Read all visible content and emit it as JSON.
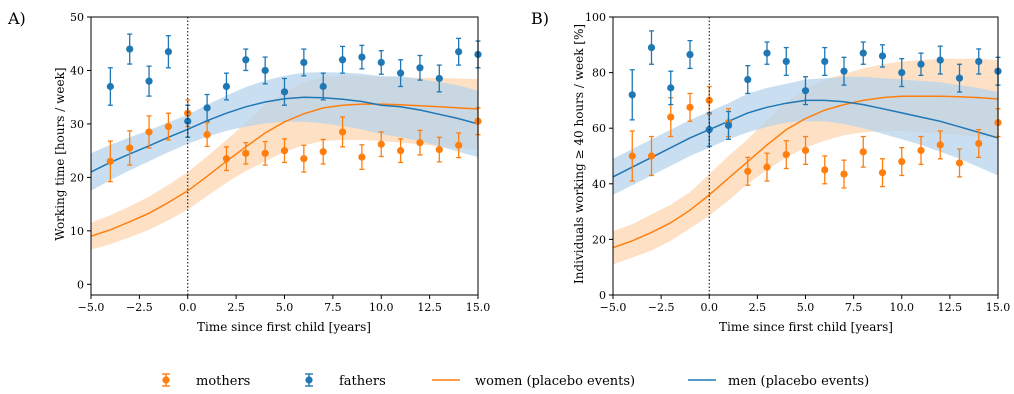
{
  "legend": {
    "mothers": "mothers",
    "fathers": "fathers",
    "women_placebo": "women (placebo events)",
    "men_placebo": "men (placebo events)"
  },
  "colors": {
    "mothers": "#ff7f0e",
    "fathers": "#1f77b4",
    "women_band": "#fdd5b1",
    "men_band": "#b7d4ec"
  },
  "chart_data": [
    {
      "panel_label": "A)",
      "type": "scatter",
      "xlabel": "Time since first child [years]",
      "ylabel": "Working time [hours / week]",
      "xlim": [
        -5,
        15
      ],
      "ylim": [
        -2,
        50
      ],
      "xticks": [
        "−5.0",
        "−2.5",
        "0.0",
        "2.5",
        "5.0",
        "7.5",
        "10.0",
        "12.5",
        "15.0"
      ],
      "xtick_values": [
        -5,
        -2.5,
        0,
        2.5,
        5,
        7.5,
        10,
        12.5,
        15
      ],
      "yticks": [
        "0",
        "10",
        "20",
        "30",
        "40",
        "50"
      ],
      "ytick_values": [
        0,
        10,
        20,
        30,
        40,
        50
      ],
      "event_line_x": 0,
      "series": [
        {
          "key": "mothers",
          "kind": "errorbar",
          "points": [
            [
              -4,
              23,
              3.8
            ],
            [
              -3,
              25.5,
              3.2
            ],
            [
              -2,
              28.5,
              3
            ],
            [
              -1,
              29.5,
              2.5
            ],
            [
              0,
              32,
              2.5
            ],
            [
              1,
              28,
              2.2
            ],
            [
              2,
              23.5,
              2.2
            ],
            [
              3,
              24.5,
              2
            ],
            [
              4,
              24.5,
              2.2
            ],
            [
              5,
              25,
              2.2
            ],
            [
              6,
              23.5,
              2.5
            ],
            [
              7,
              24.8,
              2.3
            ],
            [
              8,
              28.5,
              2.8
            ],
            [
              9,
              23.8,
              2.3
            ],
            [
              10,
              26.2,
              2.3
            ],
            [
              11,
              25,
              2.2
            ],
            [
              12,
              26.5,
              2.3
            ],
            [
              13,
              25.2,
              2.3
            ],
            [
              14,
              26,
              2.3
            ],
            [
              15,
              30.5,
              2.5
            ]
          ]
        },
        {
          "key": "fathers",
          "kind": "errorbar",
          "points": [
            [
              -4,
              37,
              3.5
            ],
            [
              -3,
              44,
              2.8
            ],
            [
              -2,
              38,
              2.8
            ],
            [
              -1,
              43.5,
              3
            ],
            [
              0,
              30.5,
              3
            ],
            [
              1,
              33,
              2.5
            ],
            [
              2,
              37,
              2.5
            ],
            [
              3,
              42,
              2
            ],
            [
              4,
              40,
              2.5
            ],
            [
              5,
              36,
              2.5
            ],
            [
              6,
              41.5,
              2.5
            ],
            [
              7,
              37,
              2.5
            ],
            [
              8,
              42,
              2.5
            ],
            [
              9,
              42.5,
              2.2
            ],
            [
              10,
              41.5,
              2.2
            ],
            [
              11,
              39.5,
              2.5
            ],
            [
              12,
              40.5,
              2.3
            ],
            [
              13,
              38.5,
              2.5
            ],
            [
              14,
              43.5,
              2.5
            ],
            [
              15,
              43,
              2.5
            ]
          ]
        },
        {
          "key": "women_placebo",
          "kind": "line",
          "x": [
            -5,
            -4,
            -3,
            -2,
            -1,
            0,
            1,
            2,
            3,
            4,
            5,
            6,
            7,
            8,
            9,
            10,
            11,
            12,
            13,
            14,
            15
          ],
          "y": [
            9,
            10.2,
            11.7,
            13.3,
            15.3,
            17.5,
            20.2,
            23,
            25.7,
            28.3,
            30.4,
            31.9,
            33,
            33.5,
            33.7,
            33.7,
            33.6,
            33.4,
            33.2,
            33,
            32.8
          ],
          "lower": [
            6.5,
            7.5,
            8.8,
            10.2,
            12,
            14,
            16.5,
            19,
            21.2,
            23,
            24.8,
            26,
            26.8,
            27,
            27,
            26.8,
            26.5,
            26.2,
            25.8,
            25.5,
            25.2
          ],
          "upper": [
            11.5,
            12.9,
            14.6,
            16.4,
            18.6,
            21,
            23.9,
            27,
            30.2,
            33.6,
            36,
            37.8,
            38.8,
            39,
            39,
            38.8,
            38.7,
            38.6,
            38.6,
            38.5,
            38.4
          ]
        },
        {
          "key": "men_placebo",
          "kind": "line",
          "x": [
            -5,
            -4,
            -3,
            -2,
            -1,
            0,
            1,
            2,
            3,
            4,
            5,
            6,
            7,
            8,
            9,
            10,
            11,
            12,
            13,
            14,
            15
          ],
          "y": [
            21,
            22.8,
            24.4,
            25.9,
            27.5,
            29,
            30.6,
            32,
            33.2,
            34.1,
            34.7,
            35,
            34.9,
            34.6,
            34.2,
            33.5,
            33.2,
            32.6,
            31.8,
            31,
            30
          ],
          "lower": [
            17.5,
            19.5,
            21.3,
            23,
            24.7,
            26.3,
            27.6,
            28.7,
            29.5,
            30.1,
            30.4,
            30.4,
            30.1,
            29.6,
            29,
            28.1,
            27.5,
            26.8,
            25.8,
            24.8,
            23.8
          ],
          "upper": [
            24.5,
            26.1,
            27.5,
            28.8,
            30.3,
            31.7,
            33.6,
            35.3,
            36.9,
            38.1,
            39,
            39.6,
            39.7,
            39.6,
            39.4,
            38.9,
            38.9,
            38.4,
            37.8,
            37.2,
            36.2
          ]
        }
      ]
    },
    {
      "panel_label": "B)",
      "type": "scatter",
      "xlabel": "Time since first child [years]",
      "ylabel": "Individuals working ≥ 40 hours  / week [%]",
      "xlim": [
        -5,
        15
      ],
      "ylim": [
        0,
        100
      ],
      "xticks": [
        "−5.0",
        "−2.5",
        "0.0",
        "2.5",
        "5.0",
        "7.5",
        "10.0",
        "12.5",
        "15.0"
      ],
      "xtick_values": [
        -5,
        -2.5,
        0,
        2.5,
        5,
        7.5,
        10,
        12.5,
        15
      ],
      "yticks": [
        "0",
        "20",
        "40",
        "60",
        "80",
        "100"
      ],
      "ytick_values": [
        0,
        20,
        40,
        60,
        80,
        100
      ],
      "event_line_x": 0,
      "series": [
        {
          "key": "mothers",
          "kind": "errorbar",
          "points": [
            [
              -4,
              50,
              9
            ],
            [
              -3,
              50,
              7
            ],
            [
              -2,
              64,
              7
            ],
            [
              -1,
              67.5,
              5
            ],
            [
              0,
              70,
              5
            ],
            [
              1,
              62,
              5
            ],
            [
              2,
              44.5,
              5
            ],
            [
              3,
              46,
              5
            ],
            [
              4,
              50.5,
              5
            ],
            [
              5,
              52,
              5
            ],
            [
              6,
              45,
              5
            ],
            [
              7,
              43.5,
              5
            ],
            [
              8,
              51.5,
              5.5
            ],
            [
              9,
              44,
              5
            ],
            [
              10,
              48,
              5
            ],
            [
              11,
              52,
              5
            ],
            [
              12,
              54,
              5
            ],
            [
              13,
              47.5,
              5
            ],
            [
              14,
              54.5,
              5
            ],
            [
              15,
              62,
              5
            ]
          ]
        },
        {
          "key": "fathers",
          "kind": "errorbar",
          "points": [
            [
              -4,
              72,
              9
            ],
            [
              -3,
              89,
              6
            ],
            [
              -2,
              74.5,
              6
            ],
            [
              -1,
              86.5,
              5
            ],
            [
              0,
              59.5,
              6
            ],
            [
              1,
              61,
              5
            ],
            [
              2,
              77.5,
              5
            ],
            [
              3,
              87,
              4
            ],
            [
              4,
              84,
              5
            ],
            [
              5,
              73.5,
              5
            ],
            [
              6,
              84,
              5
            ],
            [
              7,
              80.5,
              5
            ],
            [
              8,
              87,
              4
            ],
            [
              9,
              86,
              4
            ],
            [
              10,
              80,
              5
            ],
            [
              11,
              83,
              4
            ],
            [
              12,
              84.5,
              5
            ],
            [
              13,
              78,
              5
            ],
            [
              14,
              84,
              4.5
            ],
            [
              15,
              80.5,
              5
            ]
          ]
        },
        {
          "key": "women_placebo",
          "kind": "line",
          "x": [
            -5,
            -4,
            -3,
            -2,
            -1,
            0,
            1,
            2,
            3,
            4,
            5,
            6,
            7,
            8,
            9,
            10,
            11,
            12,
            13,
            14,
            15
          ],
          "y": [
            17,
            19.5,
            22.5,
            26,
            30.5,
            36,
            42,
            48,
            54,
            59.5,
            63.5,
            66.5,
            68.5,
            70,
            71,
            71.5,
            71.5,
            71.5,
            71.3,
            71,
            70.5
          ],
          "lower": [
            11,
            13.5,
            16,
            19.5,
            24,
            28.5,
            34,
            40,
            45,
            49.5,
            53,
            55.5,
            57.5,
            58.5,
            59,
            59,
            58.5,
            58,
            57.5,
            57,
            56.5
          ],
          "upper": [
            23,
            25.5,
            29,
            32.5,
            37,
            43.5,
            50,
            56,
            63,
            69.5,
            74,
            77.5,
            79.5,
            81.5,
            83,
            84,
            84.5,
            85,
            85,
            85,
            84.5
          ]
        },
        {
          "key": "men_placebo",
          "kind": "line",
          "x": [
            -5,
            -4,
            -3,
            -2,
            -1,
            0,
            1,
            2,
            3,
            4,
            5,
            6,
            7,
            8,
            9,
            10,
            11,
            12,
            13,
            14,
            15
          ],
          "y": [
            42.5,
            46,
            49.5,
            53,
            56.5,
            59.5,
            62.5,
            65.5,
            67.5,
            69,
            70,
            70,
            69.5,
            68.5,
            67,
            65.5,
            64,
            62.5,
            60.5,
            58.5,
            56.5
          ],
          "lower": [
            36,
            39.5,
            43,
            46.5,
            50,
            53,
            56,
            58.5,
            60.5,
            62,
            62.5,
            62.5,
            61.5,
            60,
            58,
            56,
            54,
            51.5,
            49,
            46,
            43
          ],
          "upper": [
            49,
            52.5,
            56,
            59.5,
            63,
            66,
            69,
            72.5,
            74.5,
            76,
            77.5,
            78,
            78.5,
            78.5,
            78,
            77.5,
            77,
            76.5,
            75.5,
            74.5,
            73
          ]
        }
      ]
    }
  ]
}
